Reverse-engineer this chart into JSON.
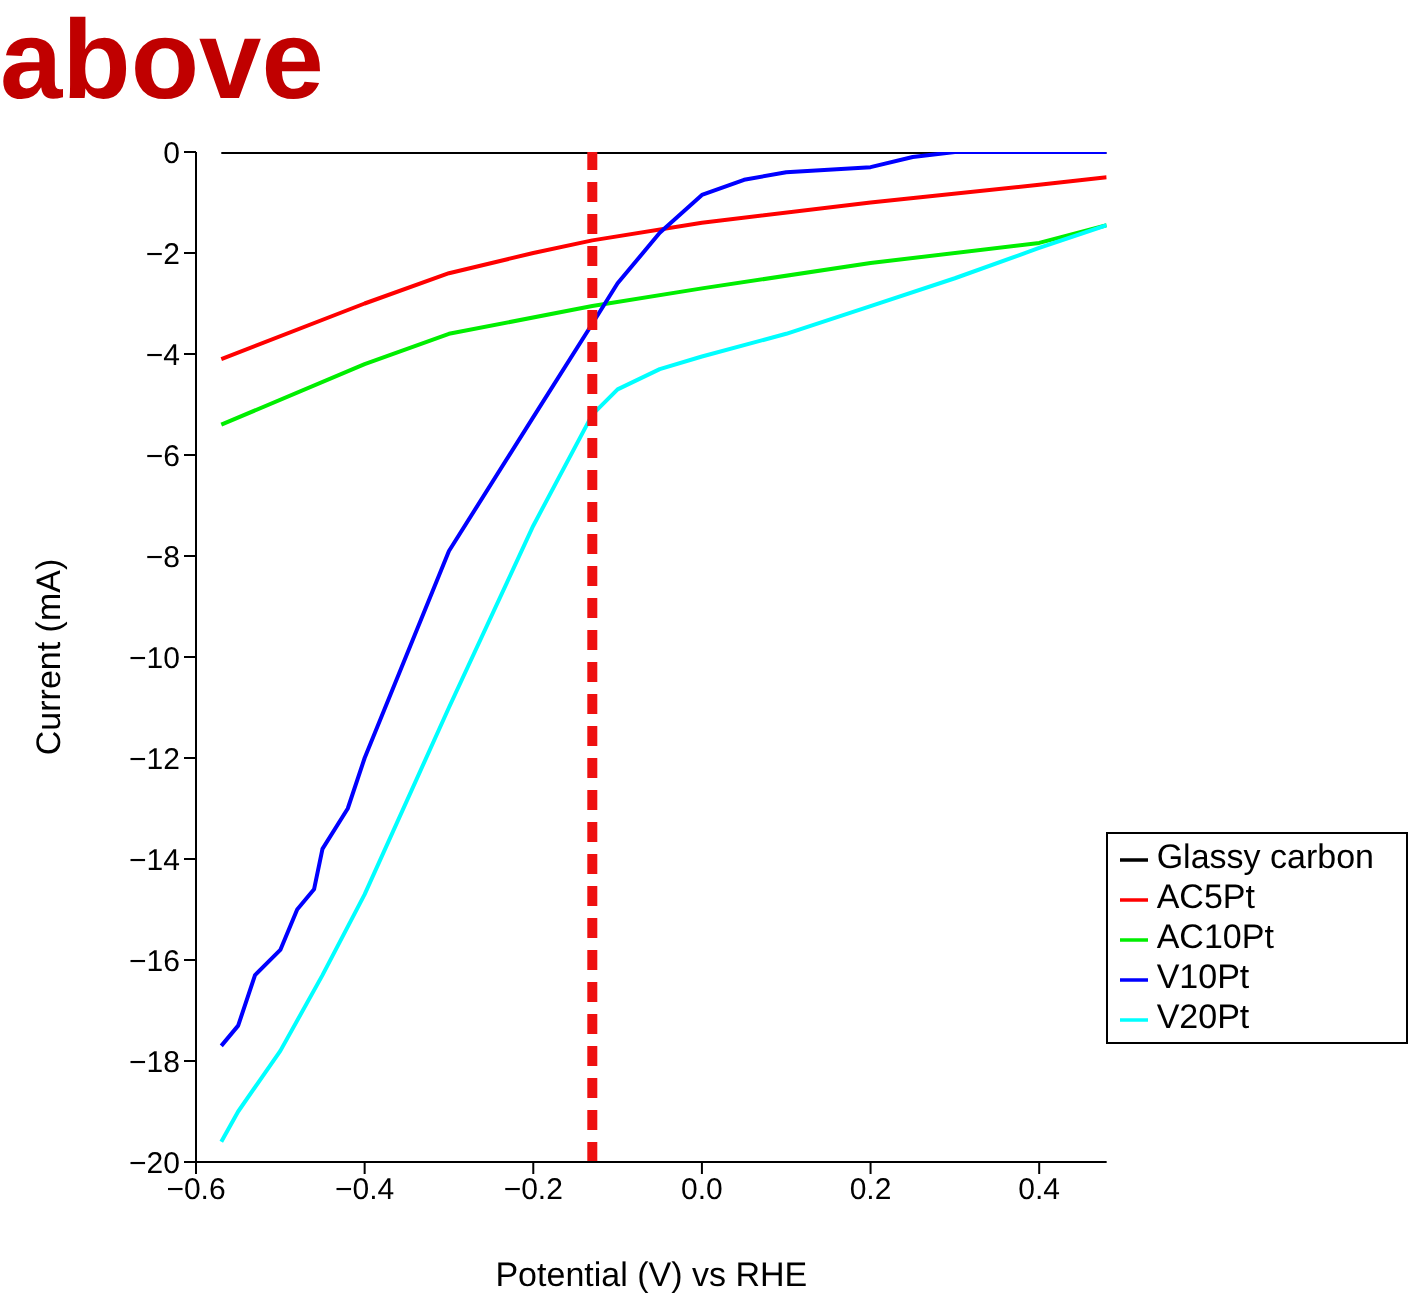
{
  "chart_data": {
    "type": "line",
    "title": "above",
    "xlabel": "Potential (V) vs RHE",
    "ylabel": "Current (mA)",
    "xlim": [
      -0.6,
      0.48
    ],
    "xticks": [
      -0.6,
      -0.4,
      -0.2,
      {
        "value": 0,
        "label": "0.0"
      },
      0.2,
      0.4
    ],
    "ylim": [
      -20,
      0
    ],
    "yticks": [
      -20,
      -18,
      -16,
      -14,
      -12,
      -10,
      -8,
      -6,
      -4,
      -2,
      0
    ],
    "legend": "bottom right",
    "marker": "none",
    "line_style": "solid",
    "grid": false,
    "ref_lines": [
      {
        "axis": "x",
        "value": -0.13,
        "label": null,
        "color": "#ee1111",
        "line_style": "dashed"
      }
    ],
    "series": [
      {
        "name": "Glassy carbon",
        "color": "#000000",
        "x": [
          -0.57,
          0.48
        ],
        "values": [
          0,
          0
        ]
      },
      {
        "name": "AC5Pt",
        "color": "#ff0000",
        "x": [
          -0.57,
          -0.4,
          -0.3,
          -0.2,
          -0.13,
          0,
          0.2,
          0.4,
          0.48
        ],
        "values": [
          -4.1,
          -3.0,
          -2.4,
          -2.0,
          -1.75,
          -1.4,
          -1.0,
          -0.65,
          -0.5
        ]
      },
      {
        "name": "AC10Pt",
        "color": "#00ee00",
        "x": [
          -0.57,
          -0.4,
          -0.3,
          -0.13,
          0,
          0.2,
          0.4,
          0.48
        ],
        "values": [
          -5.4,
          -4.2,
          -3.6,
          -3.05,
          -2.7,
          -2.2,
          -1.8,
          -1.45
        ]
      },
      {
        "name": "V10Pt",
        "color": "#0000ff",
        "x": [
          -0.57,
          -0.55,
          -0.53,
          -0.5,
          -0.48,
          -0.46,
          -0.45,
          -0.42,
          -0.4,
          -0.3,
          -0.2,
          -0.13,
          -0.1,
          -0.05,
          0,
          0.05,
          0.1,
          0.15,
          0.2,
          0.25,
          0.3,
          0.48
        ],
        "values": [
          -17.7,
          -17.3,
          -16.3,
          -15.8,
          -15.0,
          -14.6,
          -13.8,
          -13.0,
          -12.0,
          -7.9,
          -5.25,
          -3.4,
          -2.6,
          -1.6,
          -0.85,
          -0.55,
          -0.4,
          -0.35,
          -0.3,
          -0.1,
          0,
          0
        ]
      },
      {
        "name": "V20Pt",
        "color": "#00ffff",
        "x": [
          -0.57,
          -0.55,
          -0.5,
          -0.45,
          -0.4,
          -0.3,
          -0.2,
          -0.13,
          -0.1,
          -0.05,
          0,
          0.1,
          0.2,
          0.3,
          0.4,
          0.48
        ],
        "values": [
          -19.6,
          -19.0,
          -17.8,
          -16.3,
          -14.7,
          -11.0,
          -7.4,
          -5.2,
          -4.7,
          -4.3,
          -4.05,
          -3.6,
          -3.05,
          -2.5,
          -1.9,
          -1.45
        ]
      }
    ]
  }
}
